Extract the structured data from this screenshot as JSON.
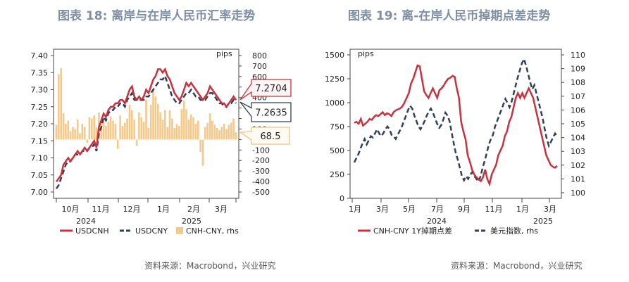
{
  "left": {
    "title": "图表 18: 离岸与在岸人民币汇率走势",
    "source": "资料来源：Macrobond，兴业研究",
    "units_label": "pips",
    "year_labels": [
      "2024",
      "2025"
    ],
    "callouts": [
      {
        "text": "7.2704",
        "color": "#c8323f",
        "fill": "#fff4f5"
      },
      {
        "text": "7.2635",
        "color": "#333f55",
        "fill": "#ffffff"
      },
      {
        "text": "68.5",
        "color": "#f2c27d",
        "fill": "#fffbf2"
      }
    ],
    "legend": [
      {
        "label": "USDCNH",
        "style": "solid",
        "color": "#c8323f"
      },
      {
        "label": "USDCNY",
        "style": "dash",
        "color": "#333f55"
      },
      {
        "label": "CNH-CNY, rhs",
        "style": "bar",
        "color": "#f4c98a"
      }
    ]
  },
  "right": {
    "title": "图表 19: 离-在岸人民币掉期点差走势",
    "source": "资料来源：Macrobond，兴业研究",
    "units_label": "pips",
    "year_labels": [
      "2024",
      "2025"
    ],
    "legend": [
      {
        "label": "CNH-CNY 1Y掉期点差",
        "style": "solid",
        "color": "#c8323f"
      },
      {
        "label": "美元指数, rhs",
        "style": "dash",
        "color": "#333f55"
      }
    ]
  },
  "chart_data": [
    {
      "type": "line",
      "title": "图表 18: 离岸与在岸人民币汇率走势",
      "x_tick_labels": [
        "10月",
        "11月",
        "12月",
        "1月",
        "2月",
        "3月"
      ],
      "ylim": [
        7.0,
        7.4
      ],
      "y_ticks": [
        "7.00",
        "7.05",
        "7.10",
        "7.15",
        "7.20",
        "7.25",
        "7.30",
        "7.35",
        "7.40"
      ],
      "y2lim": [
        -500,
        800
      ],
      "y2_ticks": [
        "-500",
        "-400",
        "-300",
        "-200",
        "-100",
        "0",
        "100",
        "200",
        "300",
        "400",
        "500",
        "600",
        "700",
        "800"
      ],
      "series": [
        {
          "name": "USDCNH",
          "color": "#c8323f",
          "style": "solid",
          "values": [
            7.03,
            7.04,
            7.05,
            7.08,
            7.09,
            7.1,
            7.09,
            7.1,
            7.11,
            7.12,
            7.11,
            7.12,
            7.13,
            7.12,
            7.13,
            7.14,
            7.15,
            7.13,
            7.19,
            7.21,
            7.23,
            7.22,
            7.24,
            7.25,
            7.25,
            7.26,
            7.26,
            7.27,
            7.27,
            7.26,
            7.28,
            7.3,
            7.31,
            7.28,
            7.27,
            7.28,
            7.27,
            7.28,
            7.3,
            7.29,
            7.31,
            7.33,
            7.34,
            7.36,
            7.36,
            7.35,
            7.36,
            7.34,
            7.33,
            7.31,
            7.29,
            7.28,
            7.27,
            7.28,
            7.3,
            7.32,
            7.31,
            7.32,
            7.31,
            7.3,
            7.29,
            7.28,
            7.27,
            7.28,
            7.29,
            7.31,
            7.3,
            7.29,
            7.28,
            7.27,
            7.26,
            7.26,
            7.25,
            7.26,
            7.27,
            7.28,
            7.27
          ]
        },
        {
          "name": "USDCNY",
          "color": "#333f55",
          "style": "dash",
          "values": [
            7.01,
            7.02,
            7.04,
            7.06,
            7.08,
            7.09,
            7.09,
            7.1,
            7.11,
            7.11,
            7.11,
            7.12,
            7.12,
            7.12,
            7.13,
            7.13,
            7.14,
            7.12,
            7.17,
            7.19,
            7.22,
            7.21,
            7.23,
            7.24,
            7.24,
            7.25,
            7.25,
            7.26,
            7.26,
            7.25,
            7.27,
            7.28,
            7.29,
            7.27,
            7.27,
            7.27,
            7.27,
            7.27,
            7.28,
            7.28,
            7.29,
            7.3,
            7.31,
            7.32,
            7.33,
            7.33,
            7.34,
            7.32,
            7.3,
            7.28,
            7.27,
            7.26,
            7.26,
            7.27,
            7.28,
            7.29,
            7.29,
            7.3,
            7.29,
            7.28,
            7.28,
            7.27,
            7.27,
            7.27,
            7.28,
            7.29,
            7.29,
            7.28,
            7.27,
            7.26,
            7.26,
            7.25,
            7.25,
            7.26,
            7.26,
            7.27,
            7.26
          ]
        },
        {
          "name": "CNH-CNY, rhs",
          "color": "#f4c98a",
          "style": "bar",
          "values": [
            140,
            620,
            680,
            250,
            150,
            180,
            80,
            120,
            100,
            190,
            60,
            150,
            120,
            -30,
            210,
            200,
            230,
            120,
            260,
            150,
            190,
            130,
            170,
            220,
            180,
            150,
            -90,
            230,
            130,
            160,
            200,
            330,
            280,
            190,
            -60,
            260,
            210,
            170,
            380,
            110,
            330,
            480,
            410,
            340,
            260,
            190,
            280,
            120,
            280,
            200,
            110,
            150,
            130,
            290,
            370,
            290,
            190,
            240,
            210,
            150,
            180,
            -120,
            -250,
            120,
            160,
            250,
            180,
            140,
            110,
            90,
            120,
            150,
            100,
            140,
            160,
            200,
            69
          ]
        }
      ]
    },
    {
      "type": "line",
      "title": "图表 19: 离-在岸人民币掉期点差走势",
      "x_tick_labels": [
        "1月",
        "3月",
        "5月",
        "7月",
        "9月",
        "11月",
        "1月",
        "3月"
      ],
      "ylim": [
        0,
        1500
      ],
      "y_ticks": [
        "0",
        "250",
        "500",
        "750",
        "1000",
        "1250",
        "1500"
      ],
      "y2lim": [
        100,
        110
      ],
      "y2_ticks": [
        "100",
        "101",
        "102",
        "103",
        "104",
        "105",
        "106",
        "107",
        "108",
        "109",
        "110"
      ],
      "series": [
        {
          "name": "CNH-CNY 1Y掉期点差",
          "color": "#c8323f",
          "style": "solid",
          "values": [
            790,
            800,
            780,
            830,
            760,
            780,
            800,
            830,
            820,
            850,
            870,
            860,
            880,
            900,
            870,
            890,
            880,
            860,
            900,
            920,
            930,
            940,
            960,
            1000,
            1050,
            1100,
            1200,
            1250,
            1320,
            1390,
            1380,
            1250,
            1120,
            1080,
            1050,
            1100,
            1150,
            1100,
            1050,
            1130,
            1150,
            1180,
            1220,
            1250,
            1260,
            1280,
            1270,
            1150,
            1050,
            800,
            700,
            620,
            450,
            380,
            300,
            250,
            220,
            200,
            180,
            220,
            300,
            200,
            150,
            250,
            300,
            350,
            450,
            500,
            550,
            650,
            700,
            800,
            850,
            950,
            1050,
            1100,
            1050,
            1100,
            1050,
            1100,
            1150,
            1100,
            1050,
            950,
            850,
            750,
            650,
            550,
            450,
            400,
            350,
            330,
            320,
            340
          ]
        },
        {
          "name": "美元指数, rhs",
          "color": "#333f55",
          "style": "dash",
          "values": [
            102.2,
            102.5,
            102.8,
            103.2,
            103.6,
            103.9,
            103.5,
            103.8,
            104.1,
            104.0,
            104.3,
            104.6,
            104.3,
            104.1,
            104.3,
            104.6,
            104.8,
            104.6,
            104.2,
            104.1,
            103.9,
            104.2,
            104.5,
            104.8,
            105.2,
            105.6,
            106.0,
            106.3,
            106.1,
            105.6,
            105.2,
            104.8,
            104.6,
            104.9,
            105.2,
            105.6,
            105.9,
            106.1,
            105.8,
            105.4,
            105.0,
            104.7,
            104.9,
            105.3,
            105.8,
            105.6,
            105.2,
            104.4,
            103.6,
            102.9,
            102.4,
            101.8,
            101.2,
            100.9,
            101.2,
            101.0,
            101.3,
            101.5,
            101.2,
            101.0,
            100.8,
            101.2,
            101.8,
            102.3,
            102.9,
            103.5,
            103.9,
            104.2,
            104.8,
            105.2,
            105.6,
            106.0,
            106.4,
            106.8,
            106.5,
            106.2,
            106.6,
            107.2,
            107.8,
            108.4,
            108.9,
            109.4,
            109.7,
            109.2,
            108.6,
            108.0,
            107.5,
            107.8,
            107.2,
            106.6,
            106.0,
            105.4,
            104.6,
            103.9,
            103.4,
            103.7,
            104.0,
            104.3,
            104.1
          ]
        }
      ]
    }
  ]
}
